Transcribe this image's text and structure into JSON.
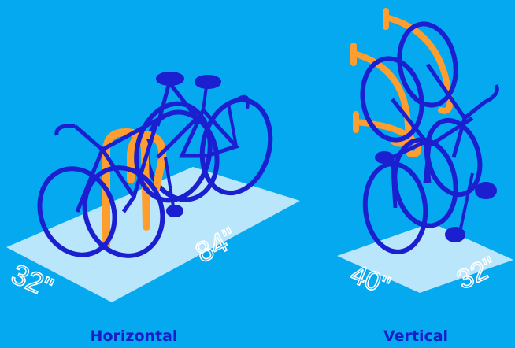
{
  "colors": {
    "background": "#05a9f0",
    "floor": "#b9e6fb",
    "bike": "#1c1fd0",
    "bike_dark": "#0f12a0",
    "rack": "#ff9d2e",
    "dimension_text": "#ffffff",
    "caption_text": "#1a1ec8"
  },
  "layouts": {
    "horizontal": {
      "label": "Horizontal",
      "dimensions": {
        "width": "32\"",
        "depth": "84\""
      }
    },
    "vertical": {
      "label": "Vertical",
      "dimensions": {
        "width": "40\"",
        "depth": "32\""
      }
    }
  }
}
